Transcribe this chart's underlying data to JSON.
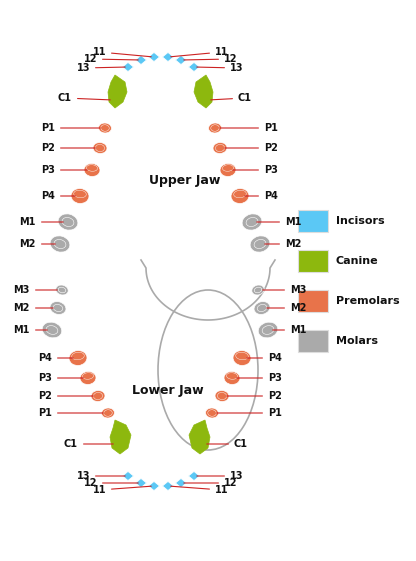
{
  "bg_color": "#ffffff",
  "incisor_color": "#5bc8f5",
  "canine_color": "#8db80e",
  "premolar_color": "#e8734a",
  "molar_color": "#aaaaaa",
  "label_color": "#cc2222",
  "text_color": "#111111",
  "outline_color": "#aaaaaa",
  "upper_jaw_label": "Upper Jaw",
  "lower_jaw_label": "Lower Jaw",
  "legend_items": [
    "Incisors",
    "Canine",
    "Premolars",
    "Molars"
  ],
  "legend_colors": [
    "#5bc8f5",
    "#8db80e",
    "#e8734a",
    "#aaaaaa"
  ],
  "figsize": [
    4.16,
    5.61
  ],
  "dpi": 100
}
